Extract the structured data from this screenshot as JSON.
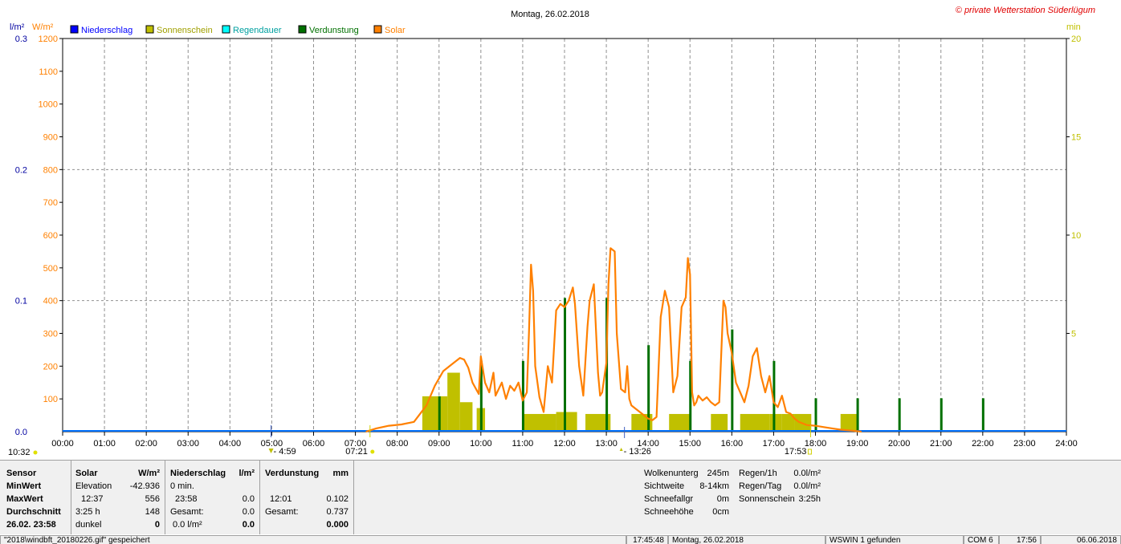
{
  "header": {
    "title": "Montag, 26.02.2018",
    "copyright": "© private Wetterstation Süderlügum",
    "left_unit1": "l/m²",
    "left_unit2": "W/m²",
    "right_unit": "min"
  },
  "colors": {
    "niederschlag": "#0000ff",
    "sonnenschein": "#c0c000",
    "regendauer": "#00ffff",
    "verdunstung": "#007000",
    "solar": "#ff8000",
    "grid": "#909090",
    "baseline": "#0070ff"
  },
  "legend": [
    {
      "label": "Niederschlag",
      "color": "#0000ff"
    },
    {
      "label": "Sonnenschein",
      "color": "#c0c000"
    },
    {
      "label": "Regendauer",
      "color": "#00ffff"
    },
    {
      "label": "Verdunstung",
      "color": "#007000"
    },
    {
      "label": "Solar",
      "color": "#ff8000"
    }
  ],
  "chart_data": {
    "type": "line",
    "title": "Montag, 26.02.2018",
    "x_ticks": [
      "00:00",
      "01:00",
      "02:00",
      "03:00",
      "04:00",
      "05:00",
      "06:00",
      "07:00",
      "08:00",
      "09:00",
      "10:00",
      "11:00",
      "12:00",
      "13:00",
      "14:00",
      "15:00",
      "16:00",
      "17:00",
      "18:00",
      "19:00",
      "20:00",
      "21:00",
      "22:00",
      "23:00",
      "24:00"
    ],
    "xlim_hours": [
      0,
      24
    ],
    "y_left_precip": {
      "unit": "l/m²",
      "ticks": [
        "0.0",
        "0.1",
        "0.2",
        "0.3"
      ],
      "range": [
        0,
        0.3
      ]
    },
    "y_left_solar": {
      "unit": "W/m²",
      "ticks": [
        "100",
        "200",
        "300",
        "400",
        "500",
        "600",
        "700",
        "800",
        "900",
        "1000",
        "1100",
        "1200"
      ],
      "range": [
        0,
        1200
      ]
    },
    "y_right": {
      "unit": "min",
      "ticks": [
        "5",
        "10",
        "15",
        "20"
      ],
      "range": [
        0,
        20
      ]
    },
    "grid": true,
    "markers": {
      "moonrise": "10:32",
      "moonset": "4:59",
      "sunrise": "07:21",
      "solar_noon": "13:26",
      "sunset": "17:53"
    },
    "series": [
      {
        "name": "Solar",
        "axis": "W/m²",
        "points": [
          [
            7.25,
            0
          ],
          [
            7.5,
            10
          ],
          [
            7.8,
            18
          ],
          [
            8.1,
            22
          ],
          [
            8.4,
            30
          ],
          [
            8.7,
            80
          ],
          [
            8.9,
            140
          ],
          [
            9.1,
            185
          ],
          [
            9.3,
            205
          ],
          [
            9.5,
            225
          ],
          [
            9.6,
            220
          ],
          [
            9.7,
            195
          ],
          [
            9.8,
            150
          ],
          [
            9.95,
            115
          ],
          [
            10.0,
            230
          ],
          [
            10.1,
            150
          ],
          [
            10.2,
            120
          ],
          [
            10.3,
            180
          ],
          [
            10.35,
            110
          ],
          [
            10.5,
            150
          ],
          [
            10.6,
            100
          ],
          [
            10.7,
            140
          ],
          [
            10.8,
            125
          ],
          [
            10.9,
            150
          ],
          [
            11.0,
            95
          ],
          [
            11.1,
            120
          ],
          [
            11.15,
            300
          ],
          [
            11.2,
            510
          ],
          [
            11.25,
            430
          ],
          [
            11.3,
            200
          ],
          [
            11.4,
            105
          ],
          [
            11.5,
            60
          ],
          [
            11.6,
            200
          ],
          [
            11.7,
            150
          ],
          [
            11.8,
            370
          ],
          [
            11.9,
            390
          ],
          [
            12.0,
            380
          ],
          [
            12.1,
            400
          ],
          [
            12.2,
            440
          ],
          [
            12.25,
            390
          ],
          [
            12.35,
            200
          ],
          [
            12.45,
            110
          ],
          [
            12.55,
            320
          ],
          [
            12.6,
            400
          ],
          [
            12.7,
            450
          ],
          [
            12.8,
            180
          ],
          [
            12.85,
            110
          ],
          [
            12.9,
            120
          ],
          [
            13.0,
            210
          ],
          [
            13.05,
            450
          ],
          [
            13.1,
            560
          ],
          [
            13.2,
            550
          ],
          [
            13.25,
            300
          ],
          [
            13.35,
            130
          ],
          [
            13.45,
            120
          ],
          [
            13.5,
            200
          ],
          [
            13.55,
            100
          ],
          [
            13.6,
            80
          ],
          [
            13.7,
            70
          ],
          [
            13.8,
            60
          ],
          [
            13.9,
            50
          ],
          [
            14.0,
            40
          ],
          [
            14.1,
            35
          ],
          [
            14.2,
            45
          ],
          [
            14.3,
            350
          ],
          [
            14.4,
            430
          ],
          [
            14.5,
            380
          ],
          [
            14.6,
            120
          ],
          [
            14.7,
            170
          ],
          [
            14.8,
            380
          ],
          [
            14.9,
            410
          ],
          [
            14.95,
            530
          ],
          [
            15.0,
            480
          ],
          [
            15.05,
            120
          ],
          [
            15.1,
            80
          ],
          [
            15.15,
            90
          ],
          [
            15.2,
            110
          ],
          [
            15.3,
            95
          ],
          [
            15.4,
            105
          ],
          [
            15.5,
            90
          ],
          [
            15.6,
            80
          ],
          [
            15.7,
            90
          ],
          [
            15.8,
            400
          ],
          [
            15.85,
            380
          ],
          [
            15.9,
            300
          ],
          [
            16.0,
            240
          ],
          [
            16.1,
            150
          ],
          [
            16.2,
            120
          ],
          [
            16.3,
            90
          ],
          [
            16.4,
            140
          ],
          [
            16.5,
            230
          ],
          [
            16.6,
            255
          ],
          [
            16.7,
            170
          ],
          [
            16.8,
            120
          ],
          [
            16.9,
            170
          ],
          [
            17.0,
            90
          ],
          [
            17.1,
            75
          ],
          [
            17.2,
            110
          ],
          [
            17.3,
            60
          ],
          [
            17.4,
            55
          ],
          [
            17.5,
            40
          ],
          [
            17.6,
            30
          ],
          [
            17.7,
            25
          ],
          [
            17.8,
            20
          ],
          [
            18.0,
            18
          ],
          [
            18.2,
            14
          ],
          [
            18.4,
            10
          ],
          [
            18.6,
            6
          ],
          [
            18.9,
            3
          ],
          [
            19.1,
            0
          ]
        ]
      },
      {
        "name": "Sonnenschein",
        "axis": "min",
        "bars": [
          [
            8.6,
            9.2,
            1.8
          ],
          [
            9.2,
            9.5,
            3.0
          ],
          [
            9.5,
            9.8,
            1.5
          ],
          [
            9.9,
            10.1,
            1.2
          ],
          [
            11.0,
            11.8,
            0.9
          ],
          [
            11.8,
            12.3,
            1.0
          ],
          [
            12.5,
            13.1,
            0.9
          ],
          [
            13.6,
            14.1,
            0.9
          ],
          [
            14.5,
            15.0,
            0.9
          ],
          [
            15.5,
            15.9,
            0.9
          ],
          [
            16.2,
            16.9,
            0.9
          ],
          [
            16.9,
            17.2,
            0.9
          ],
          [
            17.2,
            17.5,
            0.9
          ],
          [
            17.5,
            17.9,
            0.9
          ],
          [
            18.6,
            19.0,
            0.9
          ]
        ]
      },
      {
        "name": "Verdunstung",
        "axis": "min",
        "bars": [
          [
            9.0,
            1.8
          ],
          [
            10.0,
            3.6
          ],
          [
            11.0,
            3.6
          ],
          [
            12.0,
            6.8
          ],
          [
            13.0,
            6.8
          ],
          [
            14.0,
            4.4
          ],
          [
            15.0,
            3.6
          ],
          [
            16.0,
            5.2
          ],
          [
            17.0,
            3.6
          ],
          [
            18.0,
            1.7
          ],
          [
            19.0,
            1.7
          ],
          [
            20.0,
            1.7
          ],
          [
            21.0,
            1.7
          ],
          [
            22.0,
            1.7
          ]
        ]
      }
    ]
  },
  "panel": {
    "col1": {
      "header": "Sensor",
      "rows": [
        "MinWert",
        "MaxWert",
        "Durchschnitt",
        "26.02. 23:58"
      ]
    },
    "col2": {
      "header": "Solar",
      "unit": "W/m²",
      "rows": [
        [
          "Elevation",
          "-42.936"
        ],
        [
          "12:37",
          "556"
        ],
        [
          "3:25 h",
          "148"
        ],
        [
          "dunkel",
          "0"
        ]
      ]
    },
    "col3": {
      "header": "Niederschlag",
      "unit": "l/m²",
      "rows": [
        [
          "0 min.",
          ""
        ],
        [
          "23:58",
          "0.0"
        ],
        [
          "Gesamt:",
          "0.0"
        ],
        [
          "0.0 l/m²",
          "0.0"
        ]
      ]
    },
    "col4": {
      "header": "Verdunstung",
      "unit": "mm",
      "rows": [
        [
          "",
          ""
        ],
        [
          "12:01",
          "0.102"
        ],
        [
          "Gesamt:",
          "0.737"
        ],
        [
          "",
          "0.000"
        ]
      ]
    },
    "col5": {
      "rows": [
        [
          "Wolkenunterg",
          "245m"
        ],
        [
          "Sichtweite",
          "8-14km"
        ],
        [
          "Schneefallgr",
          "0m"
        ],
        [
          "Schneehöhe",
          "0cm"
        ]
      ]
    },
    "col6": {
      "rows": [
        [
          "Regen/1h",
          "0.0l/m²"
        ],
        [
          "Regen/Tag",
          "0.0l/m²"
        ],
        [
          "Sonnenschein",
          "3:25h"
        ]
      ]
    }
  },
  "statusbar": {
    "file": "\"2018\\windbft_20180226.gif\" gespeichert",
    "time1": "17:45:48",
    "date": "Montag, 26.02.2018",
    "wswin": "WSWIN 1 gefunden",
    "com": "COM 6",
    "time2": "17:56",
    "date2": "06.06.2018"
  }
}
